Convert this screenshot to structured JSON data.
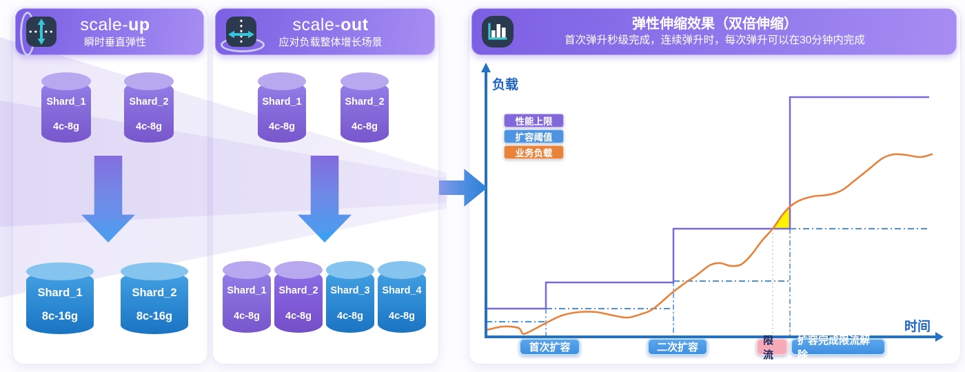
{
  "panels": {
    "scale_up": {
      "title_prefix": "scale-",
      "title_bold": "up",
      "subtitle": "瞬时垂直弹性",
      "before": [
        {
          "name": "Shard_1",
          "spec": "4c-8g"
        },
        {
          "name": "Shard_2",
          "spec": "4c-8g"
        }
      ],
      "after": [
        {
          "name": "Shard_1",
          "spec": "8c-16g"
        },
        {
          "name": "Shard_2",
          "spec": "8c-16g"
        }
      ]
    },
    "scale_out": {
      "title_prefix": "scale-",
      "title_bold": "out",
      "subtitle": "应对负载整体增长场景",
      "before": [
        {
          "name": "Shard_1",
          "spec": "4c-8g"
        },
        {
          "name": "Shard_2",
          "spec": "4c-8g"
        }
      ],
      "after": [
        {
          "name": "Shard_1",
          "spec": "4c-8g"
        },
        {
          "name": "Shard_2",
          "spec": "4c-8g"
        },
        {
          "name": "Shard_3",
          "spec": "4c-8g"
        },
        {
          "name": "Shard_4",
          "spec": "4c-8g"
        }
      ]
    },
    "chart_panel": {
      "title": "弹性伸缩效果（双倍伸缩）",
      "subtitle": "首次弹升秒级完成，连续弹升时，每次弹升可以在30分钟内完成"
    }
  },
  "chart_data": {
    "type": "line",
    "title": "弹性伸缩效果（双倍伸缩）",
    "xlabel": "时间",
    "ylabel": "负载",
    "grid": false,
    "legend_position": "upper-left",
    "axis_color": "#2273c8",
    "axis": {
      "x0": 25,
      "y_top": 92,
      "y_bottom": 479,
      "arrow_tip": 688
    },
    "series": [
      {
        "name": "性能上限",
        "type": "step",
        "color": "#7a68d8",
        "points": [
          [
            25,
            438
          ],
          [
            112,
            438
          ],
          [
            112,
            400
          ],
          [
            297,
            400
          ],
          [
            297,
            322
          ],
          [
            466,
            322
          ],
          [
            466,
            131
          ],
          [
            668,
            131
          ]
        ]
      },
      {
        "name": "扩容阈值",
        "type": "dashdot",
        "color": "#4a90e0",
        "segments": [
          [
            [
              25,
              457
            ],
            [
              112,
              457
            ]
          ],
          [
            [
              112,
              438
            ],
            [
              297,
              438
            ]
          ],
          [
            [
              297,
              398
            ],
            [
              466,
              398
            ]
          ],
          [
            [
              466,
              322
            ],
            [
              668,
              322
            ]
          ]
        ],
        "drop_lines": [
          [
            112,
            438
          ],
          [
            297,
            398
          ],
          [
            466,
            322
          ]
        ]
      },
      {
        "name": "业务负载",
        "type": "curve",
        "color": "#e8813a",
        "points": [
          [
            26,
            469
          ],
          [
            50,
            464
          ],
          [
            72,
            466
          ],
          [
            78,
            474
          ],
          [
            85,
            473
          ],
          [
            110,
            460
          ],
          [
            135,
            448
          ],
          [
            160,
            443
          ],
          [
            185,
            443
          ],
          [
            210,
            448
          ],
          [
            230,
            451
          ],
          [
            250,
            446
          ],
          [
            268,
            438
          ],
          [
            295,
            415
          ],
          [
            315,
            400
          ],
          [
            330,
            390
          ],
          [
            350,
            375
          ],
          [
            365,
            372
          ],
          [
            380,
            376
          ],
          [
            395,
            374
          ],
          [
            410,
            360
          ],
          [
            425,
            340
          ],
          [
            441,
            322
          ],
          [
            455,
            302
          ],
          [
            466,
            290
          ],
          [
            480,
            281
          ],
          [
            500,
            275
          ],
          [
            520,
            273
          ],
          [
            540,
            267
          ],
          [
            560,
            252
          ],
          [
            580,
            236
          ],
          [
            600,
            220
          ],
          [
            617,
            214
          ],
          [
            635,
            215
          ],
          [
            655,
            218
          ],
          [
            672,
            214
          ]
        ]
      }
    ],
    "markers": [
      [
        112,
        438
      ],
      [
        297,
        398
      ],
      [
        441,
        322
      ],
      [
        466,
        322
      ]
    ],
    "throttle_region": {
      "x_start": 441,
      "x_end": 466,
      "baseline_y": 322,
      "color": "#fff200"
    },
    "legend": [
      {
        "label": "性能上限",
        "color": "#8468db"
      },
      {
        "label": "扩容阈值",
        "color": "#4f94e2"
      },
      {
        "label": "业务负载",
        "color": "#e8833c"
      }
    ],
    "events": [
      {
        "label": "首次扩容",
        "style": "blue"
      },
      {
        "label": "二次扩容",
        "style": "blue"
      },
      {
        "label": "限流",
        "style": "pink"
      },
      {
        "label": "扩容完成限流解除",
        "style": "blue"
      }
    ]
  },
  "colors": {
    "header_purple": "#8468e6",
    "cylinder_purple": "#8367d8",
    "cylinder_blue": "#2b88d2",
    "arrow_blue": "#38a2f2",
    "axis_blue": "#2273c8",
    "step_purple": "#7a68d8",
    "threshold_blue": "#4a90e0",
    "load_orange": "#e8813a",
    "throttle_yellow": "#fff200"
  }
}
